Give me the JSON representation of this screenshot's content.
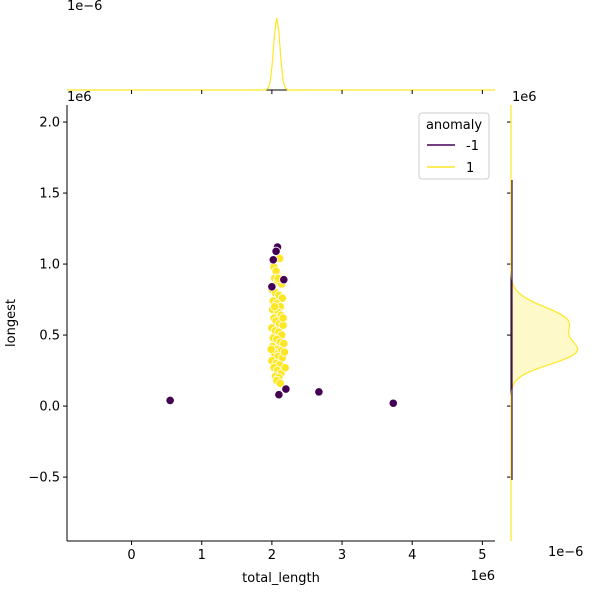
{
  "chart_data": {
    "type": "scatter",
    "title": "",
    "xlabel": "total_length",
    "ylabel": "longest",
    "x_scale_label": "1e6",
    "y_scale_label": "1e6",
    "xlim": [
      -0.92,
      5.18
    ],
    "ylim": [
      -0.95,
      2.12
    ],
    "x_ticks": [
      0,
      1,
      2,
      3,
      4,
      5
    ],
    "y_ticks": [
      -0.5,
      0.0,
      0.5,
      1.0,
      1.5,
      2.0
    ],
    "grid": false,
    "legend": {
      "title": "anomaly",
      "placement": "top-right",
      "entries": [
        {
          "label": "-1",
          "color": "#440154"
        },
        {
          "label": "1",
          "color": "#fde725"
        }
      ]
    },
    "series": [
      {
        "name": "-1",
        "color": "#440154",
        "points": [
          [
            0.55,
            0.04
          ],
          [
            2.08,
            1.12
          ],
          [
            2.06,
            1.09
          ],
          [
            2.02,
            1.03
          ],
          [
            2.0,
            0.84
          ],
          [
            2.17,
            0.89
          ],
          [
            2.2,
            0.12
          ],
          [
            2.1,
            0.08
          ],
          [
            2.67,
            0.1
          ],
          [
            3.73,
            0.02
          ]
        ]
      },
      {
        "name": "1",
        "color": "#fde725",
        "points": [
          [
            2.03,
            0.98
          ],
          [
            2.06,
            0.95
          ],
          [
            2.11,
            1.04
          ],
          [
            2.04,
            0.9
          ],
          [
            2.08,
            0.88
          ],
          [
            2.14,
            0.86
          ],
          [
            2.0,
            0.82
          ],
          [
            2.05,
            0.8
          ],
          [
            2.1,
            0.78
          ],
          [
            2.15,
            0.76
          ],
          [
            2.02,
            0.74
          ],
          [
            2.07,
            0.72
          ],
          [
            2.12,
            0.7
          ],
          [
            2.01,
            0.68
          ],
          [
            2.09,
            0.66
          ],
          [
            2.13,
            0.64
          ],
          [
            2.03,
            0.62
          ],
          [
            2.06,
            0.6
          ],
          [
            2.11,
            0.58
          ],
          [
            2.16,
            0.57
          ],
          [
            2.0,
            0.55
          ],
          [
            2.05,
            0.53
          ],
          [
            2.1,
            0.52
          ],
          [
            2.14,
            0.5
          ],
          [
            2.02,
            0.48
          ],
          [
            2.07,
            0.47
          ],
          [
            2.12,
            0.45
          ],
          [
            2.17,
            0.44
          ],
          [
            2.01,
            0.42
          ],
          [
            2.08,
            0.4
          ],
          [
            2.13,
            0.39
          ],
          [
            2.04,
            0.37
          ],
          [
            2.09,
            0.35
          ],
          [
            2.15,
            0.34
          ],
          [
            2.0,
            0.32
          ],
          [
            2.06,
            0.3
          ],
          [
            2.11,
            0.29
          ],
          [
            2.03,
            0.27
          ],
          [
            2.08,
            0.25
          ],
          [
            2.13,
            0.23
          ],
          [
            2.05,
            0.21
          ],
          [
            2.1,
            0.2
          ],
          [
            2.07,
            0.18
          ],
          [
            2.12,
            0.16
          ],
          [
            2.18,
            0.38
          ],
          [
            2.19,
            0.27
          ],
          [
            1.99,
            0.4
          ],
          [
            2.16,
            0.62
          ],
          [
            2.04,
            0.7
          ],
          [
            2.09,
            0.9
          ]
        ]
      }
    ],
    "marginal_top": {
      "scale_label": "1e−6",
      "curves": [
        {
          "name": "1",
          "color": "#fde725",
          "peak_x": 2.07,
          "sd": 0.045,
          "fill": false
        }
      ]
    },
    "marginal_right": {
      "scale_label": "1e−6",
      "curves": [
        {
          "name": "1",
          "color": "#fde725",
          "peak_y": [
            0.38,
            0.6
          ],
          "sd": [
            0.09,
            0.1
          ],
          "fill": true
        }
      ]
    }
  }
}
